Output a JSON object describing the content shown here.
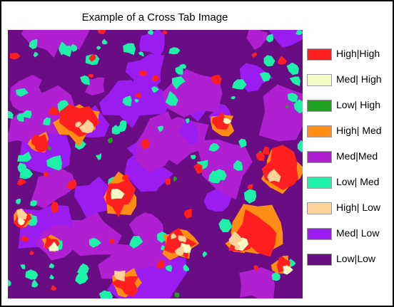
{
  "title": "Example of a Cross Tab Image",
  "map": {
    "base_color": "#6a0d84",
    "class_colors": {
      "high_high": "#ff1f1f",
      "med_high": "#f4fcc4",
      "low_high": "#1fa21f",
      "high_med": "#ff8c14",
      "med_med": "#b01fd2",
      "low_med": "#1ef0a8",
      "high_low": "#ffd29a",
      "med_low": "#9a1cf0",
      "low_low": "#6a0d84"
    }
  },
  "legend": {
    "items": [
      {
        "label": "High|High",
        "color": "#ff1f1f"
      },
      {
        "label": "Med| High",
        "color": "#f4fcc4"
      },
      {
        "label": "Low| High",
        "color": "#1fa21f"
      },
      {
        "label": "High| Med",
        "color": "#ff8c14"
      },
      {
        "label": "Med|Med",
        "color": "#b01fd2"
      },
      {
        "label": "Low| Med",
        "color": "#1ef0a8"
      },
      {
        "label": "High| Low",
        "color": "#ffd29a"
      },
      {
        "label": "Med| Low",
        "color": "#9a1cf0"
      },
      {
        "label": "Low|Low",
        "color": "#6a0d84"
      }
    ]
  }
}
